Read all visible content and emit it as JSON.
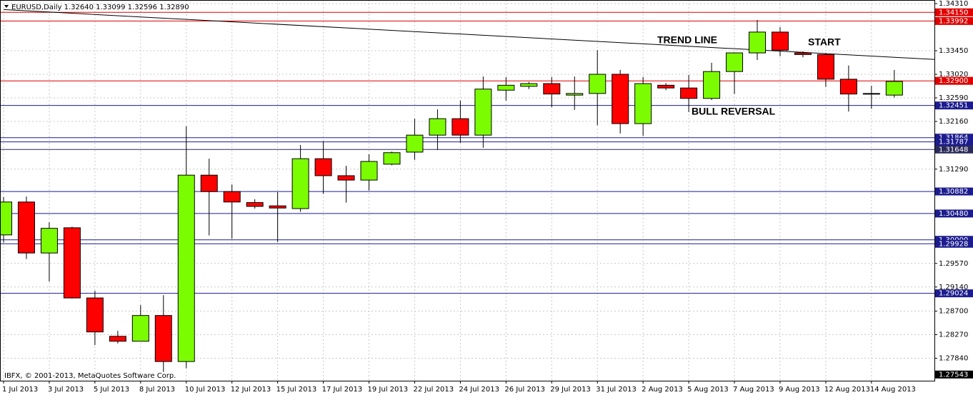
{
  "chart_data": {
    "type": "candlestick",
    "title": "EURUSD,Daily 1.32640 1.33099 1.32596 1.32890",
    "footer": "IBFX, © 2001-2013, MetaQuotes Software Corp.",
    "categories": [
      "1 Jul 2013",
      null,
      "3 Jul 2013",
      null,
      "5 Jul 2013",
      null,
      "8 Jul 2013",
      null,
      "10 Jul 2013",
      null,
      "12 Jul 2013",
      null,
      "15 Jul 2013",
      null,
      "17 Jul 2013",
      null,
      "19 Jul 2013",
      null,
      "22 Jul 2013",
      null,
      "24 Jul 2013",
      null,
      "26 Jul 2013",
      null,
      "29 Jul 2013",
      null,
      "31 Jul 2013",
      null,
      "2 Aug 2013",
      null,
      "5 Aug 2013",
      null,
      "7 Aug 2013",
      null,
      "9 Aug 2013",
      null,
      "12 Aug 2013",
      null,
      "14 Aug 2013",
      null
    ],
    "open": [
      1.3009,
      1.3069,
      1.2976,
      1.3022,
      1.2894,
      1.2824,
      1.2815,
      1.2862,
      1.2778,
      1.3118,
      1.3088,
      1.3068,
      1.3062,
      1.3057,
      1.3148,
      1.3117,
      1.3109,
      1.3138,
      1.316,
      1.3191,
      1.3221,
      1.3191,
      1.3273,
      1.328,
      1.3285,
      1.3264,
      1.3267,
      1.3302,
      1.3212,
      1.3282,
      1.3277,
      1.3258,
      1.3307,
      1.3341,
      1.3379,
      1.3341,
      1.3338,
      1.3293,
      1.3267,
      1.3264
    ],
    "high": [
      1.3078,
      1.3079,
      1.3032,
      1.3024,
      1.2907,
      1.2834,
      1.2881,
      1.2899,
      1.3207,
      1.3148,
      1.3101,
      1.3074,
      1.3087,
      1.3173,
      1.318,
      1.3135,
      1.3156,
      1.3161,
      1.3221,
      1.3238,
      1.3254,
      1.3298,
      1.3297,
      1.3288,
      1.3297,
      1.3298,
      1.3346,
      1.331,
      1.3297,
      1.3286,
      1.3301,
      1.3323,
      1.3342,
      1.3401,
      1.3388,
      1.3344,
      1.3341,
      1.3318,
      1.3281,
      1.33099
    ],
    "low": [
      1.2995,
      1.2965,
      1.2924,
      1.2893,
      1.2808,
      1.2811,
      1.2815,
      1.2759,
      1.2766,
      1.3008,
      1.3002,
      1.3057,
      1.2996,
      1.3051,
      1.3084,
      1.3068,
      1.309,
      1.3136,
      1.3146,
      1.3164,
      1.3177,
      1.3168,
      1.3254,
      1.3275,
      1.3242,
      1.3237,
      1.3209,
      1.3194,
      1.319,
      1.3273,
      1.3233,
      1.3255,
      1.3266,
      1.3328,
      1.3335,
      1.3333,
      1.3279,
      1.3234,
      1.3239,
      1.32596
    ],
    "close": [
      1.3069,
      1.2976,
      1.3021,
      1.2894,
      1.2832,
      1.2815,
      1.2862,
      1.2778,
      1.3118,
      1.3088,
      1.3069,
      1.3061,
      1.3058,
      1.3148,
      1.3117,
      1.3109,
      1.3143,
      1.3159,
      1.3191,
      1.3221,
      1.3191,
      1.3275,
      1.3282,
      1.3285,
      1.3266,
      1.3267,
      1.3302,
      1.3212,
      1.3285,
      1.3277,
      1.3258,
      1.3307,
      1.3341,
      1.3379,
      1.3346,
      1.3338,
      1.3293,
      1.3266,
      1.3267,
      1.3289
    ],
    "up_color": "#7cfc00",
    "down_color": "#ff0000",
    "ylim": [
      1.2743,
      1.34375
    ],
    "yticks": [
      {
        "value": 1.3431,
        "label": "1.34310"
      },
      {
        "value": 1.3345,
        "label": "1.33450"
      },
      {
        "value": 1.3302,
        "label": "1.33020"
      },
      {
        "value": 1.3259,
        "label": "1.32590"
      },
      {
        "value": 1.3216,
        "label": "1.32160"
      },
      {
        "value": 1.3129,
        "label": "1.31290"
      },
      {
        "value": 1.2957,
        "label": "1.29570"
      },
      {
        "value": 1.2914,
        "label": "1.29140"
      },
      {
        "value": 1.287,
        "label": "1.28700"
      },
      {
        "value": 1.2827,
        "label": "1.28270"
      },
      {
        "value": 1.2784,
        "label": "1.27840"
      }
    ],
    "grid": true,
    "levels": [
      {
        "value": 1.3415,
        "label": "1.34150",
        "color": "#e00000"
      },
      {
        "value": 1.33992,
        "label": "1.33992",
        "color": "#e00000"
      },
      {
        "value": 1.329,
        "label": "1.32900",
        "color": "#e00000"
      },
      {
        "value": 1.32451,
        "label": "1.32451",
        "color": "#1c1c8f"
      },
      {
        "value": 1.31864,
        "label": "1.31864",
        "color": "#1c1c8f"
      },
      {
        "value": 1.31787,
        "label": "1.31787",
        "color": "#1c1c8f"
      },
      {
        "value": 1.31648,
        "label": "1.31648",
        "color": "#2a2a5a"
      },
      {
        "value": 1.30882,
        "label": "1.30882",
        "color": "#1c1c8f"
      },
      {
        "value": 1.3048,
        "label": "1.30480",
        "color": "#1c1c8f"
      },
      {
        "value": 1.3,
        "label": "1.30000",
        "color": "#1c1c8f"
      },
      {
        "value": 1.29928,
        "label": "1.29928",
        "color": "#1c1c8f"
      },
      {
        "value": 1.29024,
        "label": "1.29024",
        "color": "#1c1c8f"
      }
    ],
    "price_label": {
      "value": 1.27543,
      "label": "1.27543"
    },
    "trend_line": {
      "x": [
        0,
        40.8
      ],
      "y": [
        1.342,
        1.3329
      ]
    },
    "annotations": [
      "TREND LINE",
      "START",
      "BULL REVERSAL"
    ]
  }
}
